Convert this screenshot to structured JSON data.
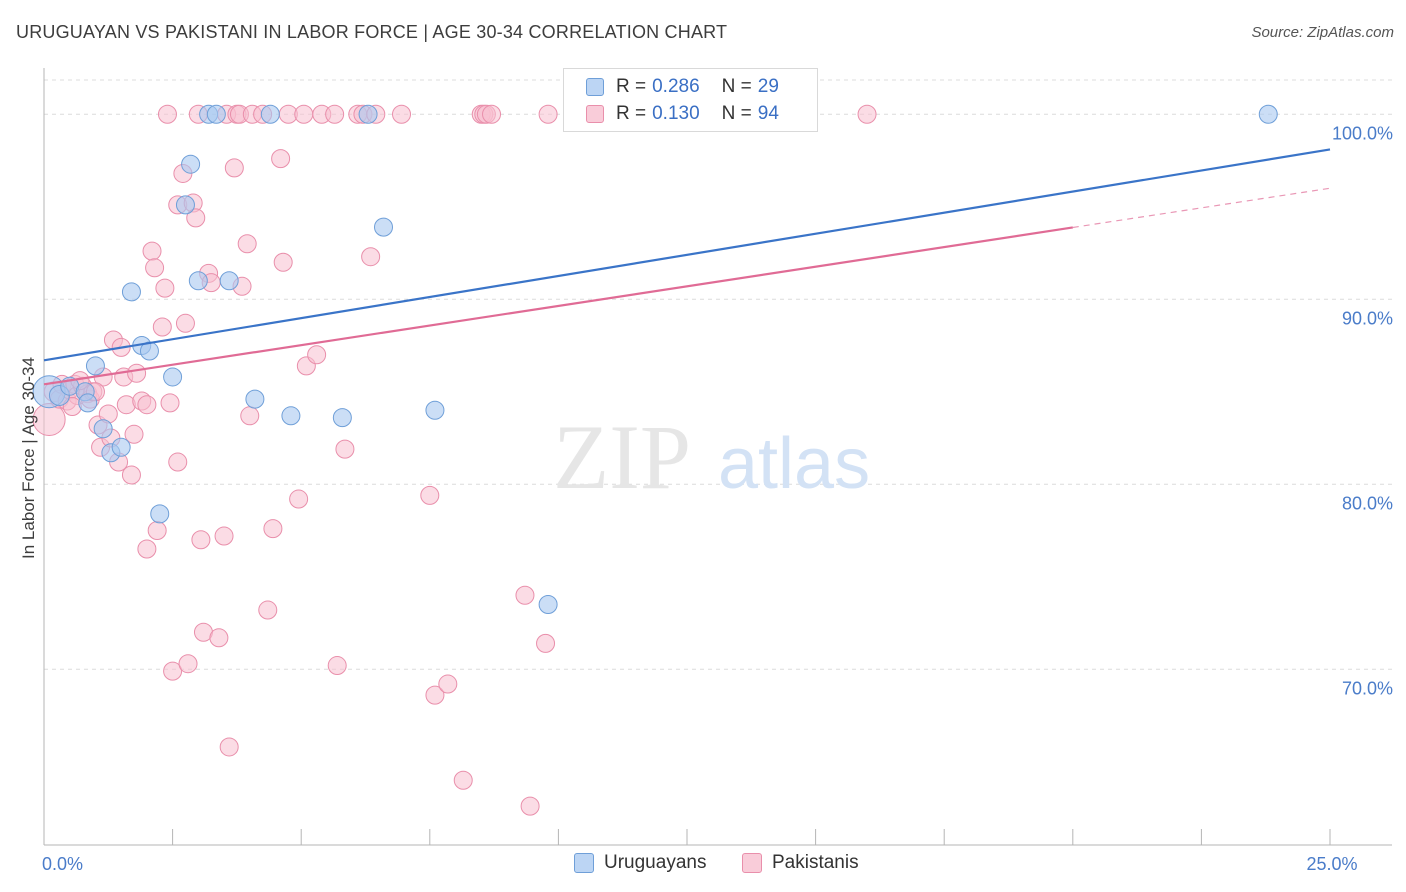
{
  "title": "URUGUAYAN VS PAKISTANI IN LABOR FORCE | AGE 30-34 CORRELATION CHART",
  "source": "Source: ZipAtlas.com",
  "watermark": {
    "zip": "ZIP",
    "atlas": "atlas"
  },
  "legend": {
    "rows": [
      {
        "r_label": "R =",
        "r_value": "0.286",
        "n_label": "N =",
        "n_value": "29"
      },
      {
        "r_label": "R =",
        "r_value": "0.130",
        "n_label": "N =",
        "n_value": "94"
      }
    ]
  },
  "bottom_legend": {
    "uruguayans": "Uruguayans",
    "pakistanis": "Pakistanis"
  },
  "colors": {
    "uruguayan_fill": "#a9c8f0",
    "uruguayan_stroke": "#6f9fd8",
    "uruguayan_line": "#3a74c8",
    "pakistani_fill": "#f7bfd0",
    "pakistani_stroke": "#e98fab",
    "pakistani_line": "#e06b95",
    "tick_color": "#4a7cc9"
  },
  "chart_data": {
    "type": "scatter",
    "title": "URUGUAYAN VS PAKISTANI IN LABOR FORCE | AGE 30-34 CORRELATION CHART",
    "xlabel": "",
    "ylabel": "In Labor Force | Age 30-34",
    "xlim": [
      0,
      25
    ],
    "ylim": [
      60.5,
      102.5
    ],
    "x_tick_labels": [
      {
        "value": 0,
        "label": "0.0%"
      },
      {
        "value": 25,
        "label": "25.0%"
      }
    ],
    "x_minor_ticks": [
      2.5,
      5,
      7.5,
      10,
      12.5,
      15,
      17.5,
      20,
      22.5,
      25
    ],
    "y_ticks": [
      {
        "value": 70,
        "label": "70.0%"
      },
      {
        "value": 80,
        "label": "80.0%"
      },
      {
        "value": 90,
        "label": "90.0%"
      },
      {
        "value": 100,
        "label": "100.0%"
      }
    ],
    "series": [
      {
        "name": "Uruguayans",
        "r": 0.286,
        "n": 29,
        "trend": {
          "x0": 0,
          "y0": 86.7,
          "x1": 25,
          "y1": 98.1,
          "solid_to": 25
        },
        "points": [
          [
            0.1,
            85.0,
            16
          ],
          [
            0.3,
            84.8,
            10
          ],
          [
            0.5,
            85.3,
            9
          ],
          [
            0.8,
            85.0,
            9
          ],
          [
            0.85,
            84.4,
            9
          ],
          [
            1.0,
            86.4,
            9
          ],
          [
            1.15,
            83.0,
            9
          ],
          [
            1.3,
            81.7,
            9
          ],
          [
            1.5,
            82.0,
            9
          ],
          [
            1.7,
            90.4,
            9
          ],
          [
            1.9,
            87.5,
            9
          ],
          [
            2.05,
            87.2,
            9
          ],
          [
            2.25,
            78.4,
            9
          ],
          [
            2.5,
            85.8,
            9
          ],
          [
            2.75,
            95.1,
            9
          ],
          [
            2.85,
            97.3,
            9
          ],
          [
            3.0,
            91.0,
            9
          ],
          [
            3.2,
            100.0,
            9
          ],
          [
            3.35,
            100.0,
            9
          ],
          [
            3.6,
            91.0,
            9
          ],
          [
            4.1,
            84.6,
            9
          ],
          [
            4.4,
            100.0,
            9
          ],
          [
            4.8,
            83.7,
            9
          ],
          [
            5.8,
            83.6,
            9
          ],
          [
            6.3,
            100.0,
            9
          ],
          [
            6.6,
            93.9,
            9
          ],
          [
            7.6,
            84.0,
            9
          ],
          [
            9.8,
            73.5,
            9
          ],
          [
            23.8,
            100.0,
            9
          ]
        ]
      },
      {
        "name": "Pakistanis",
        "r": 0.13,
        "n": 94,
        "trend": {
          "x0": 0,
          "y0": 85.4,
          "x1": 25,
          "y1": 96.0,
          "solid_to": 20
        },
        "points": [
          [
            0.1,
            83.5,
            16
          ],
          [
            0.2,
            85.0,
            10
          ],
          [
            0.3,
            84.6,
            9
          ],
          [
            0.35,
            85.4,
            9
          ],
          [
            0.45,
            84.5,
            9
          ],
          [
            0.5,
            85.1,
            9
          ],
          [
            0.6,
            85.4,
            9
          ],
          [
            0.65,
            84.8,
            9
          ],
          [
            0.75,
            85.3,
            9
          ],
          [
            0.85,
            84.9,
            9
          ],
          [
            0.9,
            84.6,
            9
          ],
          [
            0.95,
            85.0,
            9
          ],
          [
            1.05,
            83.2,
            9
          ],
          [
            1.1,
            82.0,
            9
          ],
          [
            1.15,
            85.8,
            9
          ],
          [
            1.25,
            83.8,
            9
          ],
          [
            1.3,
            82.5,
            9
          ],
          [
            1.35,
            87.8,
            9
          ],
          [
            1.45,
            81.2,
            9
          ],
          [
            1.5,
            87.4,
            9
          ],
          [
            1.55,
            85.8,
            9
          ],
          [
            1.6,
            84.3,
            9
          ],
          [
            1.7,
            80.5,
            9
          ],
          [
            1.75,
            82.7,
            9
          ],
          [
            1.8,
            86.0,
            9
          ],
          [
            1.9,
            84.5,
            9
          ],
          [
            2.0,
            84.3,
            9
          ],
          [
            2.0,
            76.5,
            9
          ],
          [
            2.1,
            92.6,
            9
          ],
          [
            2.15,
            91.7,
            9
          ],
          [
            2.2,
            77.5,
            9
          ],
          [
            2.3,
            88.5,
            9
          ],
          [
            2.35,
            90.6,
            9
          ],
          [
            2.4,
            100.0,
            9
          ],
          [
            2.45,
            84.4,
            9
          ],
          [
            2.5,
            69.9,
            9
          ],
          [
            2.6,
            95.1,
            9
          ],
          [
            2.6,
            81.2,
            9
          ],
          [
            2.7,
            96.8,
            9
          ],
          [
            2.75,
            88.7,
            9
          ],
          [
            2.8,
            70.3,
            9
          ],
          [
            2.9,
            95.2,
            9
          ],
          [
            2.95,
            94.4,
            9
          ],
          [
            3.0,
            100.0,
            9
          ],
          [
            3.05,
            77.0,
            9
          ],
          [
            3.1,
            72.0,
            9
          ],
          [
            3.2,
            91.4,
            9
          ],
          [
            3.25,
            90.9,
            9
          ],
          [
            3.4,
            71.7,
            9
          ],
          [
            3.5,
            77.2,
            9
          ],
          [
            3.55,
            100.0,
            9
          ],
          [
            3.6,
            65.8,
            9
          ],
          [
            3.7,
            97.1,
            9
          ],
          [
            3.75,
            100.0,
            9
          ],
          [
            3.8,
            100.0,
            9
          ],
          [
            3.85,
            90.7,
            9
          ],
          [
            3.95,
            93.0,
            9
          ],
          [
            4.0,
            83.7,
            9
          ],
          [
            4.05,
            100.0,
            9
          ],
          [
            4.25,
            100.0,
            9
          ],
          [
            4.35,
            73.2,
            9
          ],
          [
            4.45,
            77.6,
            9
          ],
          [
            4.6,
            97.6,
            9
          ],
          [
            4.65,
            92.0,
            9
          ],
          [
            4.75,
            100.0,
            9
          ],
          [
            4.95,
            79.2,
            9
          ],
          [
            5.05,
            100.0,
            9
          ],
          [
            5.1,
            86.4,
            9
          ],
          [
            5.3,
            87.0,
            9
          ],
          [
            5.4,
            100.0,
            9
          ],
          [
            5.65,
            100.0,
            9
          ],
          [
            5.7,
            70.2,
            9
          ],
          [
            5.85,
            81.9,
            9
          ],
          [
            6.1,
            100.0,
            9
          ],
          [
            6.2,
            100.0,
            9
          ],
          [
            6.35,
            92.3,
            9
          ],
          [
            6.45,
            100.0,
            9
          ],
          [
            6.95,
            100.0,
            9
          ],
          [
            7.5,
            79.4,
            9
          ],
          [
            7.6,
            68.6,
            9
          ],
          [
            7.85,
            69.2,
            9
          ],
          [
            8.15,
            64.0,
            9
          ],
          [
            8.5,
            100.0,
            9
          ],
          [
            8.55,
            100.0,
            9
          ],
          [
            8.6,
            100.0,
            9
          ],
          [
            8.7,
            100.0,
            9
          ],
          [
            9.35,
            74.0,
            9
          ],
          [
            9.45,
            62.6,
            9
          ],
          [
            9.75,
            71.4,
            9
          ],
          [
            9.8,
            100.0,
            9
          ],
          [
            16.0,
            100.0,
            9
          ],
          [
            0.55,
            84.2,
            9
          ],
          [
            0.7,
            85.6,
            9
          ],
          [
            1.0,
            85.0,
            9
          ]
        ]
      }
    ]
  }
}
